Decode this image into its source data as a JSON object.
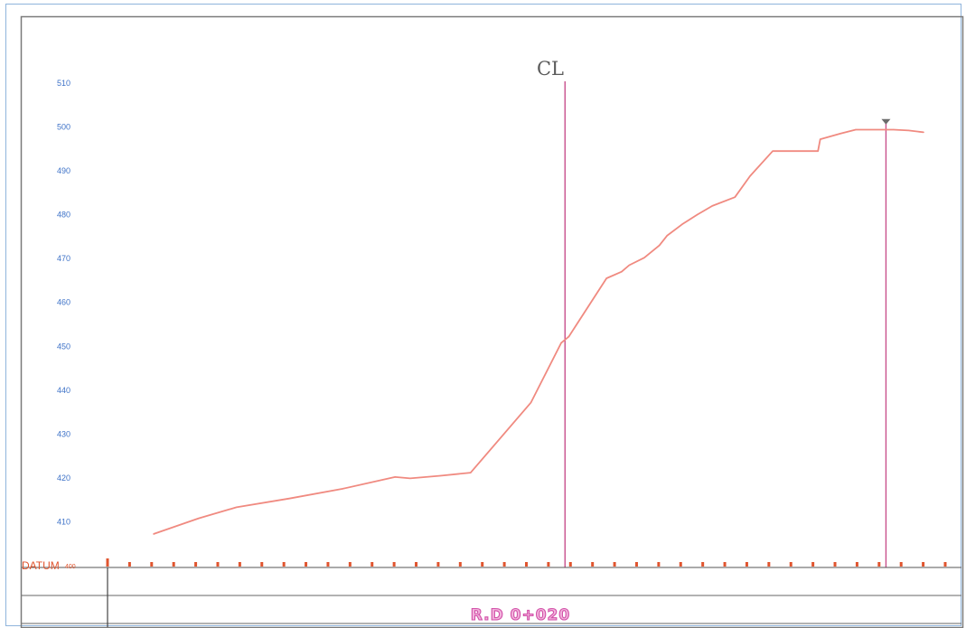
{
  "chart_data": {
    "type": "line",
    "title": "",
    "xlabel": "",
    "ylabel": "",
    "ylim": [
      400,
      510
    ],
    "grid": false,
    "y_ticks": [
      "510",
      "500",
      "490",
      "480",
      "470",
      "460",
      "450",
      "440",
      "430",
      "420",
      "410"
    ],
    "datum_label": "DATUM",
    "datum_value": "400",
    "center_line_label": "CL",
    "section_label": "R.D  0+020",
    "series": [
      {
        "color": "#f08a80",
        "points": [
          [
            -37,
            407.2
          ],
          [
            -31,
            410.8
          ],
          [
            -26,
            413.3
          ],
          [
            -19,
            415.3
          ],
          [
            -12,
            417.5
          ],
          [
            -5,
            420.2
          ],
          [
            -3,
            419.9
          ],
          [
            1,
            420.5
          ],
          [
            5,
            421.2
          ],
          [
            13,
            437.2
          ],
          [
            17,
            450.8
          ],
          [
            18,
            452.2
          ],
          [
            23,
            465.5
          ],
          [
            25,
            467.0
          ],
          [
            26,
            468.5
          ],
          [
            28,
            470.2
          ],
          [
            30,
            473.0
          ],
          [
            31,
            475.2
          ],
          [
            33,
            477.8
          ],
          [
            35,
            480.0
          ],
          [
            37,
            482.0
          ],
          [
            40,
            484.0
          ],
          [
            42,
            488.8
          ],
          [
            45,
            494.5
          ],
          [
            51,
            494.5
          ],
          [
            51.3,
            497.2
          ],
          [
            54,
            498.5
          ],
          [
            56,
            499.4
          ],
          [
            61,
            499.4
          ],
          [
            63,
            499.2
          ],
          [
            65,
            498.8
          ]
        ]
      }
    ],
    "x_range": [
      -42,
      70
    ],
    "center_line_x": 17.5,
    "water_level_x": 60,
    "water_level_elevation": 501.0,
    "colors": {
      "ground": "#f08a80",
      "vertical_lines": "#c8508c",
      "axis_text": "#3f73c8",
      "datum": "#e0552f"
    }
  }
}
